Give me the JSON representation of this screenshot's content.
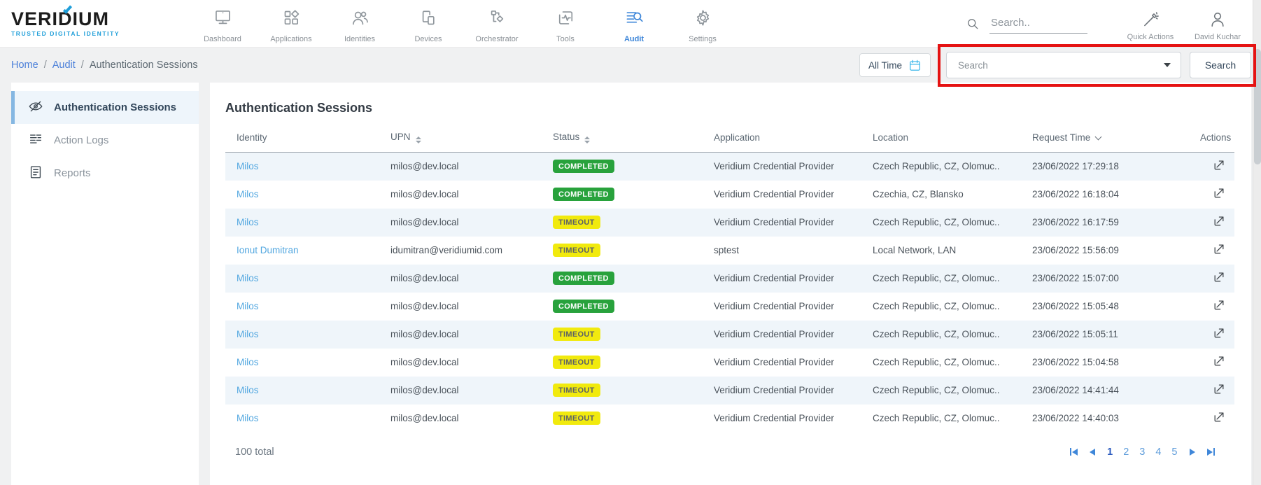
{
  "brand": {
    "name": "VERIDIUM",
    "tagline": "TRUSTED DIGITAL IDENTITY"
  },
  "top_nav": {
    "items": [
      {
        "label": "Dashboard",
        "icon": "dashboard-icon",
        "active": false
      },
      {
        "label": "Applications",
        "icon": "applications-icon",
        "active": false
      },
      {
        "label": "Identities",
        "icon": "identities-icon",
        "active": false
      },
      {
        "label": "Devices",
        "icon": "devices-icon",
        "active": false
      },
      {
        "label": "Orchestrator",
        "icon": "orchestrator-icon",
        "active": false
      },
      {
        "label": "Tools",
        "icon": "tools-icon",
        "active": false
      },
      {
        "label": "Audit",
        "icon": "audit-icon",
        "active": true
      },
      {
        "label": "Settings",
        "icon": "settings-icon",
        "active": false
      }
    ],
    "search_placeholder": "Search..",
    "quick_actions_label": "Quick Actions",
    "user_name": "David Kuchar"
  },
  "breadcrumb": {
    "items": [
      "Home",
      "Audit",
      "Authentication Sessions"
    ]
  },
  "filter_bar": {
    "time_filter_label": "All Time",
    "search_placeholder": "Search",
    "search_button_label": "Search"
  },
  "sidebar": {
    "items": [
      {
        "label": "Authentication Sessions",
        "icon": "eye-off-icon",
        "active": true
      },
      {
        "label": "Action Logs",
        "icon": "action-logs-icon",
        "active": false
      },
      {
        "label": "Reports",
        "icon": "reports-icon",
        "active": false
      }
    ]
  },
  "main": {
    "title": "Authentication Sessions",
    "table": {
      "columns": [
        {
          "label": "Identity",
          "sort": "none"
        },
        {
          "label": "UPN",
          "sort": "both"
        },
        {
          "label": "Status",
          "sort": "both"
        },
        {
          "label": "Application",
          "sort": "none"
        },
        {
          "label": "Location",
          "sort": "none"
        },
        {
          "label": "Request Time",
          "sort": "desc"
        },
        {
          "label": "Actions",
          "sort": "none"
        }
      ],
      "rows": [
        {
          "identity": "Milos",
          "upn": "milos@dev.local",
          "status": "COMPLETED",
          "application": "Veridium Credential Provider",
          "location": "Czech Republic, CZ, Olomuc..",
          "request_time": "23/06/2022 17:29:18"
        },
        {
          "identity": "Milos",
          "upn": "milos@dev.local",
          "status": "COMPLETED",
          "application": "Veridium Credential Provider",
          "location": "Czechia, CZ, Blansko",
          "request_time": "23/06/2022 16:18:04"
        },
        {
          "identity": "Milos",
          "upn": "milos@dev.local",
          "status": "TIMEOUT",
          "application": "Veridium Credential Provider",
          "location": "Czech Republic, CZ, Olomuc..",
          "request_time": "23/06/2022 16:17:59"
        },
        {
          "identity": "Ionut Dumitran",
          "upn": "idumitran@veridiumid.com",
          "status": "TIMEOUT",
          "application": "sptest",
          "location": "Local Network, LAN",
          "request_time": "23/06/2022 15:56:09"
        },
        {
          "identity": "Milos",
          "upn": "milos@dev.local",
          "status": "COMPLETED",
          "application": "Veridium Credential Provider",
          "location": "Czech Republic, CZ, Olomuc..",
          "request_time": "23/06/2022 15:07:00"
        },
        {
          "identity": "Milos",
          "upn": "milos@dev.local",
          "status": "COMPLETED",
          "application": "Veridium Credential Provider",
          "location": "Czech Republic, CZ, Olomuc..",
          "request_time": "23/06/2022 15:05:48"
        },
        {
          "identity": "Milos",
          "upn": "milos@dev.local",
          "status": "TIMEOUT",
          "application": "Veridium Credential Provider",
          "location": "Czech Republic, CZ, Olomuc..",
          "request_time": "23/06/2022 15:05:11"
        },
        {
          "identity": "Milos",
          "upn": "milos@dev.local",
          "status": "TIMEOUT",
          "application": "Veridium Credential Provider",
          "location": "Czech Republic, CZ, Olomuc..",
          "request_time": "23/06/2022 15:04:58"
        },
        {
          "identity": "Milos",
          "upn": "milos@dev.local",
          "status": "TIMEOUT",
          "application": "Veridium Credential Provider",
          "location": "Czech Republic, CZ, Olomuc..",
          "request_time": "23/06/2022 14:41:44"
        },
        {
          "identity": "Milos",
          "upn": "milos@dev.local",
          "status": "TIMEOUT",
          "application": "Veridium Credential Provider",
          "location": "Czech Republic, CZ, Olomuc..",
          "request_time": "23/06/2022 14:40:03"
        }
      ]
    },
    "footer": {
      "total": "100 total",
      "pages": [
        "1",
        "2",
        "3",
        "4",
        "5"
      ],
      "active_page": "1"
    }
  },
  "colors": {
    "accent_blue": "#3F87D9",
    "brand_cyan": "#1E9ED9",
    "completed_green": "#28A23C",
    "timeout_yellow": "#F1EA0E",
    "annotation_red": "#E51212"
  }
}
